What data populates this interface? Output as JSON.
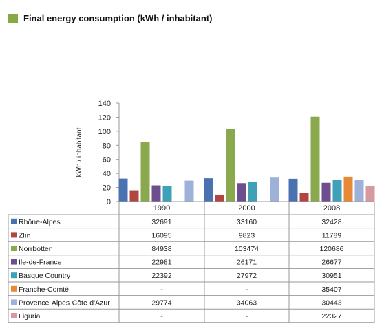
{
  "chart_data": {
    "type": "bar",
    "title": "Final energy consumption (kWh / inhabitant)",
    "title_color": "#86a845",
    "ylabel": "kWh / inhabitant",
    "ylim": [
      0,
      140
    ],
    "yticks": [
      "0",
      "20",
      "40",
      "60",
      "80",
      "100",
      "120",
      "140"
    ],
    "grid": false,
    "legend": "table-left",
    "categories": [
      "1990",
      "2000",
      "2008"
    ],
    "series": [
      {
        "name": "Rhône-Alpes",
        "color": "#4a72b0",
        "values": [
          32.691,
          33.16,
          32.428
        ],
        "labels": [
          "32691",
          "33160",
          "32428"
        ]
      },
      {
        "name": "Zlín",
        "color": "#b24441",
        "values": [
          16.095,
          9.823,
          11.789
        ],
        "labels": [
          "16095",
          "9823",
          "11789"
        ]
      },
      {
        "name": "Norrbotten",
        "color": "#8aa84e",
        "values": [
          84.938,
          103.474,
          120.686
        ],
        "labels": [
          "84938",
          "103474",
          "120686"
        ]
      },
      {
        "name": "Ile-de-France",
        "color": "#6d4f8f",
        "values": [
          22.981,
          26.171,
          26.677
        ],
        "labels": [
          "22981",
          "26171",
          "26677"
        ]
      },
      {
        "name": "Basque Country",
        "color": "#3fa1b8",
        "values": [
          22.392,
          27.972,
          30.951
        ],
        "labels": [
          "22392",
          "27972",
          "30951"
        ]
      },
      {
        "name": "Franche-Comté",
        "color": "#e68a38",
        "values": [
          null,
          null,
          35.407
        ],
        "labels": [
          "-",
          "-",
          "35407"
        ]
      },
      {
        "name": "Provence-Alpes-Côte-d'Azur",
        "color": "#9eb2d9",
        "values": [
          29.774,
          34.063,
          30.443
        ],
        "labels": [
          "29774",
          "34063",
          "30443"
        ]
      },
      {
        "name": "Liguria",
        "color": "#d79a9c",
        "values": [
          null,
          null,
          22.327
        ],
        "labels": [
          "-",
          "-",
          "22327"
        ]
      }
    ]
  }
}
